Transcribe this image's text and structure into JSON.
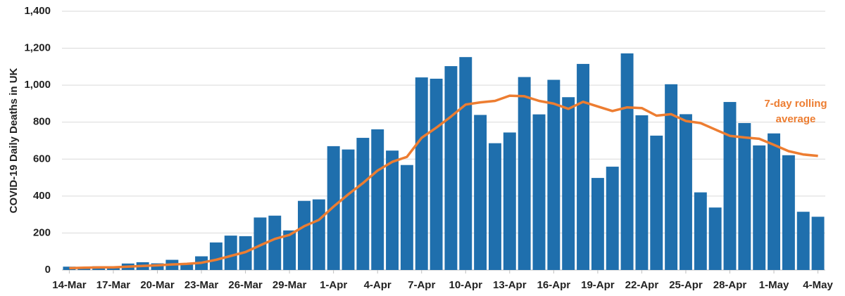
{
  "chart_data": {
    "type": "bar",
    "y_label": "COVID-19 Daily Deaths in UK",
    "annotation": [
      "7-day rolling",
      "average"
    ],
    "categories": [
      "14-Mar",
      null,
      null,
      "17-Mar",
      null,
      null,
      "20-Mar",
      null,
      null,
      "23-Mar",
      null,
      null,
      "26-Mar",
      null,
      null,
      "29-Mar",
      null,
      null,
      "1-Apr",
      null,
      null,
      "4-Apr",
      null,
      null,
      "7-Apr",
      null,
      null,
      "10-Apr",
      null,
      null,
      "13-Apr",
      null,
      null,
      "16-Apr",
      null,
      null,
      "19-Apr",
      null,
      null,
      "22-Apr",
      null,
      null,
      "25-Apr",
      null,
      null,
      "28-Apr",
      null,
      null,
      "1-May",
      null,
      null,
      "4-May"
    ],
    "series": [
      {
        "type": "bar",
        "color": "#1f6fad",
        "values": [
          18,
          12,
          20,
          12,
          35,
          42,
          36,
          55,
          35,
          74,
          149,
          186,
          183,
          284,
          294,
          214,
          374,
          382,
          670,
          652,
          715,
          761,
          646,
          568,
          1042,
          1035,
          1103,
          1152,
          839,
          686,
          744,
          1044,
          842,
          1029,
          935,
          1115,
          498,
          559,
          1172,
          837,
          727,
          1005,
          843,
          420,
          338,
          909,
          795,
          674,
          739,
          621,
          315,
          288
        ]
      },
      {
        "type": "line",
        "color": "#ed7d31",
        "values": [
          10,
          12,
          14,
          14,
          18,
          22,
          25,
          30,
          33,
          39,
          55,
          76,
          97,
          133,
          168,
          190,
          237,
          271,
          343,
          409,
          470,
          538,
          585,
          612,
          715,
          770,
          830,
          895,
          907,
          915,
          943,
          940,
          915,
          900,
          872,
          910,
          885,
          860,
          880,
          876,
          835,
          843,
          806,
          795,
          760,
          726,
          717,
          710,
          677,
          643,
          625,
          617
        ]
      }
    ],
    "ylim": [
      0,
      1400
    ],
    "yticks": [
      0,
      200,
      400,
      600,
      800,
      {
        "value": 1000,
        "label": "1,000"
      },
      {
        "value": 1200,
        "label": "1,200"
      },
      {
        "value": 1400,
        "label": "1,400"
      }
    ],
    "grid": true
  }
}
